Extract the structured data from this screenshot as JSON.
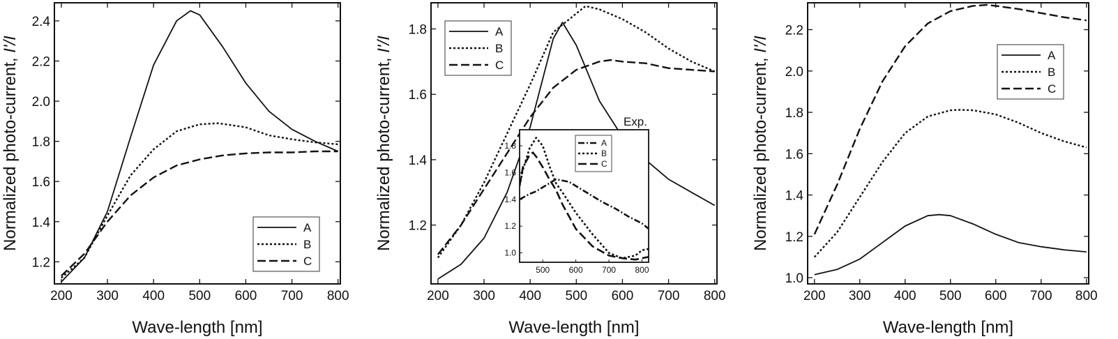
{
  "figure": {
    "xlabel": "Wave-length  [nm]",
    "ylabel": "Normalized  photo-current,",
    "ylabel_italic": "I'/I"
  },
  "chart_data": [
    {
      "type": "line",
      "panel": "left",
      "xlabel": "Wave-length  [nm]",
      "ylabel": "Normalized  photo-current,  I'/I",
      "xlim": [
        185,
        805
      ],
      "ylim": [
        1.09,
        2.49
      ],
      "xticks": [
        "200",
        "300",
        "400",
        "500",
        "600",
        "700",
        "800"
      ],
      "yticks": [
        "1.2",
        "1.4",
        "1.6",
        "1.8",
        "2.0",
        "2.2",
        "2.4"
      ],
      "legend_position": "lower-right",
      "series": [
        {
          "name": "A",
          "style": "solid",
          "x": [
            200,
            250,
            300,
            350,
            400,
            450,
            480,
            500,
            550,
            600,
            650,
            700,
            750,
            800
          ],
          "y": [
            1.1,
            1.22,
            1.45,
            1.82,
            2.18,
            2.4,
            2.45,
            2.43,
            2.27,
            2.09,
            1.95,
            1.86,
            1.8,
            1.75
          ]
        },
        {
          "name": "B",
          "style": "dotted",
          "x": [
            200,
            250,
            300,
            350,
            400,
            450,
            500,
            540,
            600,
            650,
            700,
            750,
            800
          ],
          "y": [
            1.12,
            1.22,
            1.43,
            1.63,
            1.76,
            1.85,
            1.885,
            1.89,
            1.87,
            1.83,
            1.81,
            1.795,
            1.785
          ]
        },
        {
          "name": "C",
          "style": "dashed",
          "x": [
            200,
            250,
            300,
            350,
            400,
            450,
            500,
            550,
            600,
            650,
            700,
            750,
            800
          ],
          "y": [
            1.13,
            1.24,
            1.4,
            1.53,
            1.62,
            1.68,
            1.71,
            1.73,
            1.74,
            1.745,
            1.745,
            1.75,
            1.75
          ]
        }
      ]
    },
    {
      "type": "line",
      "panel": "middle",
      "xlabel": "Wave-length  [nm]",
      "ylabel": "Normalized  photo-current,  I'/I",
      "xlim": [
        185,
        805
      ],
      "ylim": [
        1.02,
        1.88
      ],
      "xticks": [
        "200",
        "300",
        "400",
        "500",
        "600",
        "700",
        "800"
      ],
      "yticks": [
        "1.2",
        "1.4",
        "1.6",
        "1.8"
      ],
      "legend_position": "top-left",
      "series": [
        {
          "name": "A",
          "style": "solid",
          "x": [
            200,
            250,
            300,
            350,
            400,
            450,
            470,
            500,
            550,
            600,
            650,
            700,
            750,
            800
          ],
          "y": [
            1.035,
            1.08,
            1.16,
            1.3,
            1.5,
            1.77,
            1.82,
            1.75,
            1.58,
            1.47,
            1.4,
            1.34,
            1.3,
            1.26
          ]
        },
        {
          "name": "B",
          "style": "dotted",
          "x": [
            200,
            250,
            300,
            350,
            400,
            450,
            520,
            550,
            600,
            650,
            700,
            750,
            800
          ],
          "y": [
            1.1,
            1.2,
            1.33,
            1.48,
            1.63,
            1.79,
            1.87,
            1.86,
            1.83,
            1.79,
            1.74,
            1.7,
            1.67
          ]
        },
        {
          "name": "C",
          "style": "dashed",
          "x": [
            200,
            250,
            300,
            350,
            400,
            450,
            500,
            550,
            575,
            600,
            650,
            700,
            750,
            800
          ],
          "y": [
            1.11,
            1.2,
            1.31,
            1.42,
            1.53,
            1.62,
            1.675,
            1.7,
            1.705,
            1.7,
            1.695,
            1.68,
            1.675,
            1.67
          ]
        }
      ],
      "inset": {
        "label": "Exp.",
        "xlim": [
          430,
          820
        ],
        "ylim": [
          0.93,
          1.92
        ],
        "xticks": [
          "500",
          "600",
          "700",
          "800"
        ],
        "yticks": [
          "1.0",
          "1.2",
          "1.4",
          "1.6",
          "1.8"
        ],
        "legend_position": "top-right",
        "series": [
          {
            "name": "A",
            "style": "dashdot",
            "x": [
              430,
              460,
              480,
              500,
              520,
              540,
              560,
              580,
              600,
              640,
              680,
              720,
              760,
              800,
              820
            ],
            "y": [
              1.4,
              1.44,
              1.46,
              1.49,
              1.52,
              1.55,
              1.54,
              1.53,
              1.5,
              1.44,
              1.38,
              1.33,
              1.27,
              1.22,
              1.18
            ]
          },
          {
            "name": "B",
            "style": "dotted",
            "x": [
              430,
              440,
              460,
              480,
              500,
              520,
              540,
              560,
              600,
              650,
              700,
              740,
              780,
              800,
              820
            ],
            "y": [
              1.5,
              1.62,
              1.78,
              1.86,
              1.8,
              1.65,
              1.52,
              1.45,
              1.3,
              1.14,
              1.0,
              0.96,
              0.98,
              1.02,
              1.03
            ]
          },
          {
            "name": "C",
            "style": "dashed",
            "x": [
              430,
              440,
              460,
              470,
              480,
              500,
              520,
              540,
              560,
              600,
              650,
              700,
              740,
              780,
              800,
              820
            ],
            "y": [
              1.5,
              1.64,
              1.73,
              1.75,
              1.72,
              1.64,
              1.55,
              1.47,
              1.36,
              1.18,
              1.05,
              0.98,
              0.96,
              0.95,
              0.96,
              0.97
            ]
          }
        ]
      }
    },
    {
      "type": "line",
      "panel": "right",
      "xlabel": "Wave-length  [nm]",
      "ylabel": "Normalized  photo-current,  I'/I",
      "xlim": [
        185,
        805
      ],
      "ylim": [
        0.97,
        2.33
      ],
      "xticks": [
        "200",
        "300",
        "400",
        "500",
        "600",
        "700",
        "800"
      ],
      "yticks": [
        "1.0",
        "1.2",
        "1.4",
        "1.6",
        "1.8",
        "2.0",
        "2.2"
      ],
      "legend_position": "top-right",
      "series": [
        {
          "name": "A",
          "style": "solid",
          "x": [
            200,
            250,
            300,
            350,
            400,
            450,
            475,
            500,
            550,
            600,
            650,
            700,
            750,
            800
          ],
          "y": [
            1.015,
            1.04,
            1.09,
            1.17,
            1.25,
            1.3,
            1.305,
            1.3,
            1.26,
            1.21,
            1.17,
            1.15,
            1.135,
            1.125
          ]
        },
        {
          "name": "B",
          "style": "dotted",
          "x": [
            200,
            250,
            300,
            350,
            400,
            450,
            500,
            520,
            550,
            600,
            650,
            700,
            750,
            800
          ],
          "y": [
            1.1,
            1.22,
            1.39,
            1.56,
            1.7,
            1.78,
            1.81,
            1.812,
            1.81,
            1.79,
            1.75,
            1.7,
            1.66,
            1.63
          ]
        },
        {
          "name": "C",
          "style": "dashed",
          "x": [
            200,
            250,
            300,
            350,
            400,
            450,
            500,
            550,
            580,
            600,
            650,
            700,
            750,
            800
          ],
          "y": [
            1.21,
            1.45,
            1.72,
            1.95,
            2.12,
            2.23,
            2.29,
            2.315,
            2.32,
            2.315,
            2.3,
            2.28,
            2.26,
            2.245
          ]
        }
      ]
    }
  ]
}
